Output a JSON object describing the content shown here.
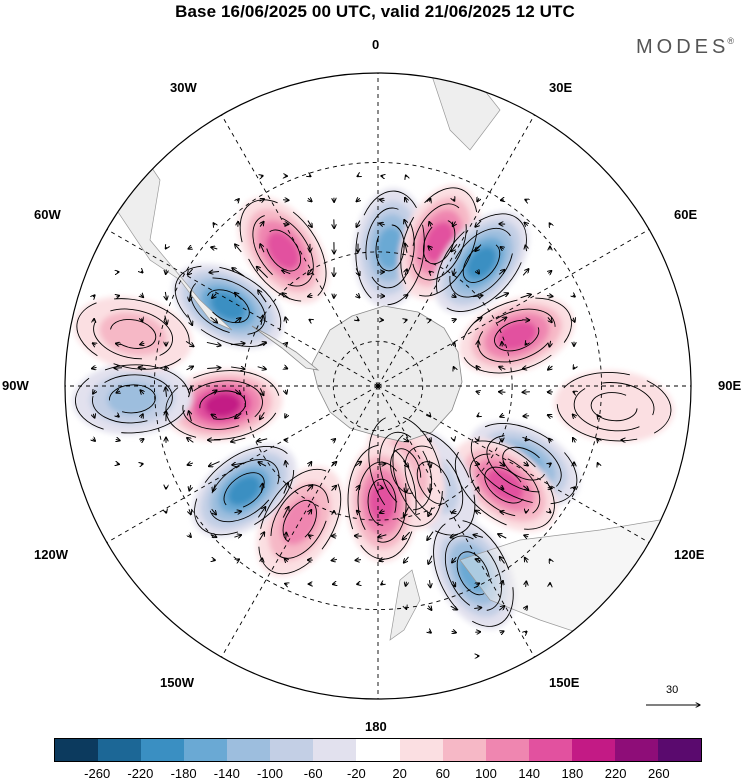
{
  "title": "Base 16/06/2025 00 UTC, valid 21/06/2025 12 UTC",
  "brand": "MODES",
  "brand_mark": "®",
  "longitude_labels": {
    "lon_0": "0",
    "lon_30e": "30E",
    "lon_60e": "60E",
    "lon_90e": "90E",
    "lon_120e": "120E",
    "lon_150e": "150E",
    "lon_180": "180",
    "lon_150w": "150W",
    "lon_120w": "120W",
    "lon_90w": "90W",
    "lon_60w": "60W",
    "lon_30w": "30W"
  },
  "reference_vector": "30",
  "colorbar": {
    "colors": [
      "#0c3a5e",
      "#1c6796",
      "#3a8fc2",
      "#6aa9d4",
      "#9dbede",
      "#c3cfe5",
      "#e2e1ee",
      "#ffffff",
      "#fbdfe2",
      "#f6b8c6",
      "#ef86b0",
      "#e2519f",
      "#c31a85",
      "#8e0d78",
      "#5a0a6e"
    ],
    "ticks": [
      "-260",
      "-220",
      "-180",
      "-140",
      "-100",
      "-60",
      "-20",
      "20",
      "60",
      "100",
      "140",
      "180",
      "220",
      "260"
    ]
  },
  "anomaly_cells": [
    {
      "lon": 5,
      "colat": 31,
      "value": -170
    },
    {
      "lon": 23,
      "colat": 35,
      "value": 160
    },
    {
      "lon": 40,
      "colat": 36,
      "value": -190
    },
    {
      "lon": 70,
      "colat": 33,
      "value": 150
    },
    {
      "lon": 118,
      "colat": 37,
      "value": -160
    },
    {
      "lon": 128,
      "colat": 36,
      "value": 150
    },
    {
      "lon": 153,
      "colat": 47,
      "value": -160
    },
    {
      "lon": 150,
      "colat": 25,
      "value": -80
    },
    {
      "lon": 162,
      "colat": 20,
      "value": 90
    },
    {
      "lon": 178,
      "colat": 26,
      "value": 150
    },
    {
      "lon": 210,
      "colat": 35,
      "value": 120
    },
    {
      "lon": 232,
      "colat": 38,
      "value": -180
    },
    {
      "lon": 263,
      "colat": 35,
      "value": 180
    },
    {
      "lon": 267,
      "colat": 55,
      "value": -110
    },
    {
      "lon": 298,
      "colat": 38,
      "value": -210
    },
    {
      "lon": 325,
      "colat": 37,
      "value": 150
    },
    {
      "lon": 282,
      "colat": 56,
      "value": 80
    },
    {
      "lon": 95,
      "colat": 53,
      "value": 40
    }
  ]
}
